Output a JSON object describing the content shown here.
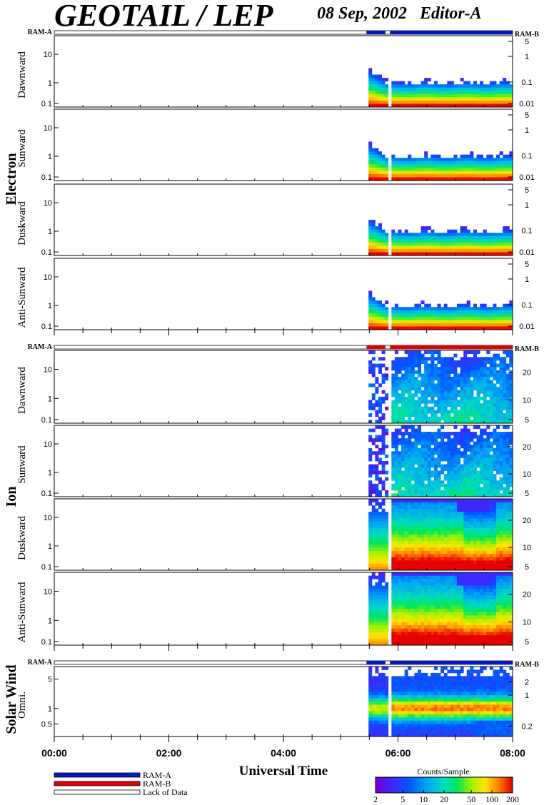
{
  "header": {
    "title": "GEOTAIL / LEP",
    "date": "08 Sep, 2002",
    "editor": "Editor-A"
  },
  "groups": [
    {
      "name": "Electron",
      "ram_left": "RAM-A",
      "ram_right": "RAM-B",
      "status": [
        {
          "from": 0.0,
          "to": 5.45,
          "state": "Lack of Data"
        },
        {
          "from": 5.45,
          "to": 5.78,
          "state": "RAM-A"
        },
        {
          "from": 5.78,
          "to": 5.86,
          "state": "Lack of Data"
        },
        {
          "from": 5.86,
          "to": 8.0,
          "state": "RAM-A"
        }
      ],
      "panels": [
        {
          "name": "Dawnward",
          "left_ticks": [
            "10",
            "1",
            "0.1"
          ],
          "right_ticks": [
            "5",
            "1",
            "0.1",
            "0.01"
          ]
        },
        {
          "name": "Sunward",
          "left_ticks": [
            "10",
            "1",
            "0.1"
          ],
          "right_ticks": [
            "5",
            "1",
            "0.1",
            "0.01"
          ]
        },
        {
          "name": "Duskward",
          "left_ticks": [
            "10",
            "1",
            "0.1"
          ],
          "right_ticks": [
            "5",
            "1",
            "0.1",
            "0.01"
          ]
        },
        {
          "name": "Anti-Sunward",
          "left_ticks": [
            "10",
            "1",
            "0.1"
          ],
          "right_ticks": [
            "5",
            "1",
            "0.1",
            "0.01"
          ]
        }
      ]
    },
    {
      "name": "Ion",
      "ram_left": "RAM-A",
      "ram_right": "RAM-B",
      "status": [
        {
          "from": 0.0,
          "to": 5.45,
          "state": "Lack of Data"
        },
        {
          "from": 5.45,
          "to": 5.78,
          "state": "RAM-B"
        },
        {
          "from": 5.78,
          "to": 5.86,
          "state": "Lack of Data"
        },
        {
          "from": 5.86,
          "to": 8.0,
          "state": "RAM-B"
        }
      ],
      "panels": [
        {
          "name": "Dawnward",
          "left_ticks": [
            "10",
            "1",
            "0.1"
          ],
          "right_ticks": [
            "20",
            "10",
            "5"
          ]
        },
        {
          "name": "Sunward",
          "left_ticks": [
            "10",
            "1",
            "0.1"
          ],
          "right_ticks": [
            "20",
            "10",
            "5"
          ]
        },
        {
          "name": "Duskward",
          "left_ticks": [
            "10",
            "1",
            "0.1"
          ],
          "right_ticks": [
            "20",
            "10",
            "5"
          ]
        },
        {
          "name": "Anti-Sunward",
          "left_ticks": [
            "10",
            "1",
            "0.1"
          ],
          "right_ticks": [
            "20",
            "10",
            "5"
          ]
        }
      ]
    },
    {
      "name": "Solar Wind",
      "ram_left": "RAM-A",
      "ram_right": "RAM-B",
      "status": [
        {
          "from": 0.0,
          "to": 5.45,
          "state": "Lack of Data"
        },
        {
          "from": 5.45,
          "to": 5.78,
          "state": "RAM-A"
        },
        {
          "from": 5.78,
          "to": 5.86,
          "state": "Lack of Data"
        },
        {
          "from": 5.86,
          "to": 8.0,
          "state": "RAM-A"
        }
      ],
      "panels": [
        {
          "name": "Omni.",
          "left_ticks": [
            "5",
            "1",
            "0.5"
          ],
          "right_ticks": [
            "2",
            "1",
            "0.2"
          ]
        }
      ]
    }
  ],
  "chart_data": {
    "type": "heatmap",
    "x_range_hours": [
      0,
      8
    ],
    "x_ticks": [
      "00:00",
      "02:00",
      "04:00",
      "06:00",
      "08:00"
    ],
    "xlabel": "Universal Time",
    "data_gaps_hours": [
      [
        0.0,
        5.45
      ],
      [
        5.78,
        5.86
      ]
    ],
    "colorbar": {
      "title": "Counts/Sample",
      "scale": "log",
      "range": [
        2,
        200
      ],
      "ticks": [
        "2",
        "5",
        "10",
        "20",
        "50",
        "100",
        "200"
      ]
    }
  },
  "legend": {
    "items": [
      {
        "label": "RAM-A",
        "color": "#0018c8"
      },
      {
        "label": "RAM-B",
        "color": "#e00000"
      },
      {
        "label": "Lack of Data",
        "color": "#ffffff"
      }
    ]
  },
  "colors": {
    "ram_a": "#0018c8",
    "ram_b": "#e00000"
  }
}
